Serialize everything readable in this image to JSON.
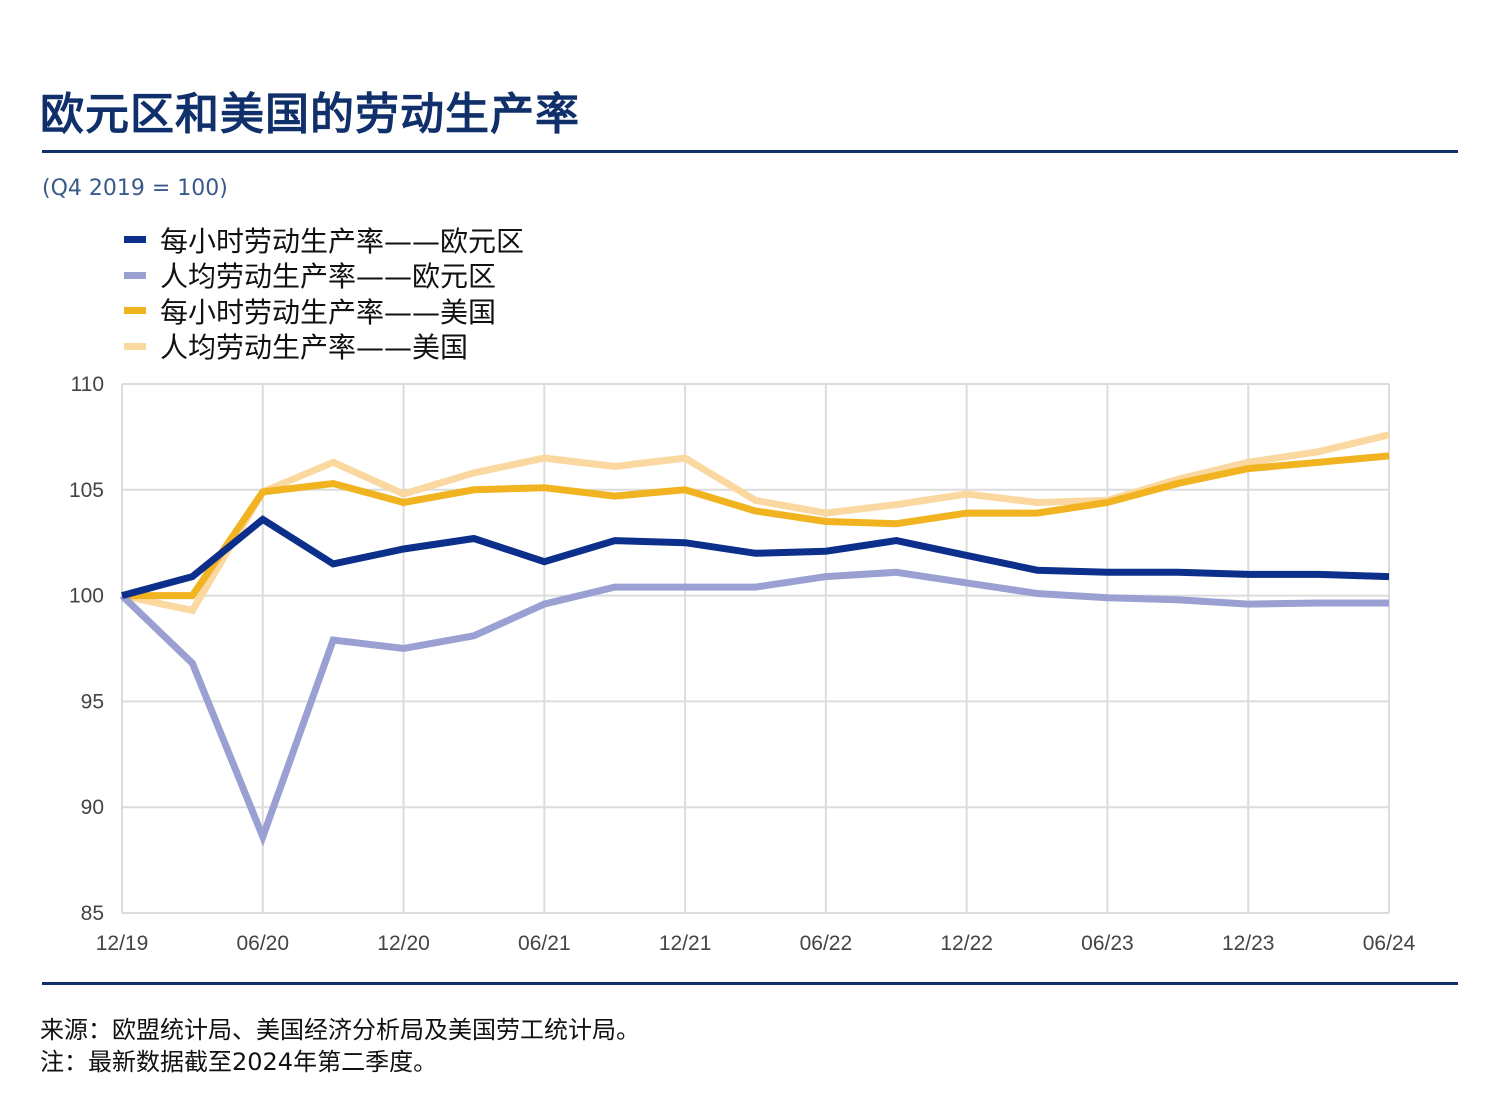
{
  "header": {
    "title": "欧元区和美国的劳动生产率"
  },
  "footer": {
    "source": "来源：欧盟统计局、美国经济分析局及美国劳工统计局。",
    "note": "注：最新数据截至2024年第二季度。"
  },
  "chart_data": {
    "type": "line",
    "title": "欧元区和美国的劳动生产率",
    "subtitle": "(Q4 2019 = 100)",
    "xlabel": "",
    "ylabel": "",
    "ylim": [
      85,
      110
    ],
    "yticks": [
      "85",
      "90",
      "95",
      "100",
      "105",
      "110"
    ],
    "xtick_labels": [
      "12/19",
      "06/20",
      "12/20",
      "06/21",
      "12/21",
      "06/22",
      "12/22",
      "06/23",
      "12/23",
      "06/24"
    ],
    "x": [
      "Q4 2019",
      "Q1 2020",
      "Q2 2020",
      "Q3 2020",
      "Q4 2020",
      "Q1 2021",
      "Q2 2021",
      "Q3 2021",
      "Q4 2021",
      "Q1 2022",
      "Q2 2022",
      "Q3 2022",
      "Q4 2022",
      "Q1 2023",
      "Q2 2023",
      "Q3 2023",
      "Q4 2023",
      "Q1 2024",
      "Q2 2024"
    ],
    "grid": true,
    "legend_position": "top-left",
    "series": [
      {
        "name": "每小时劳动生产率——欧元区",
        "color": "#0b2f8a",
        "values": [
          100,
          100.9,
          103.6,
          101.5,
          102.2,
          102.7,
          101.6,
          102.6,
          102.5,
          102.0,
          102.1,
          102.6,
          101.9,
          101.2,
          101.1,
          101.1,
          101.0,
          101.0,
          100.9
        ]
      },
      {
        "name": "人均劳动生产率——欧元区",
        "color": "#9aa1d2",
        "values": [
          100,
          96.8,
          88.6,
          97.9,
          97.5,
          98.1,
          99.6,
          100.4,
          100.4,
          100.4,
          100.9,
          101.1,
          100.6,
          100.1,
          99.9,
          99.8,
          99.6,
          99.65,
          99.65
        ]
      },
      {
        "name": "每小时劳动生产率——美国",
        "color": "#f1b31f",
        "values": [
          100,
          100.0,
          104.9,
          105.3,
          104.4,
          105.0,
          105.1,
          104.7,
          105.0,
          104.0,
          103.5,
          103.4,
          103.9,
          103.9,
          104.4,
          105.3,
          106.0,
          106.3,
          106.6
        ]
      },
      {
        "name": "人均劳动生产率——美国",
        "color": "#fad8a0",
        "values": [
          100,
          99.3,
          104.9,
          106.3,
          104.8,
          105.8,
          106.5,
          106.1,
          106.5,
          104.5,
          103.9,
          104.3,
          104.8,
          104.4,
          104.5,
          105.5,
          106.3,
          106.8,
          107.6
        ]
      }
    ]
  }
}
